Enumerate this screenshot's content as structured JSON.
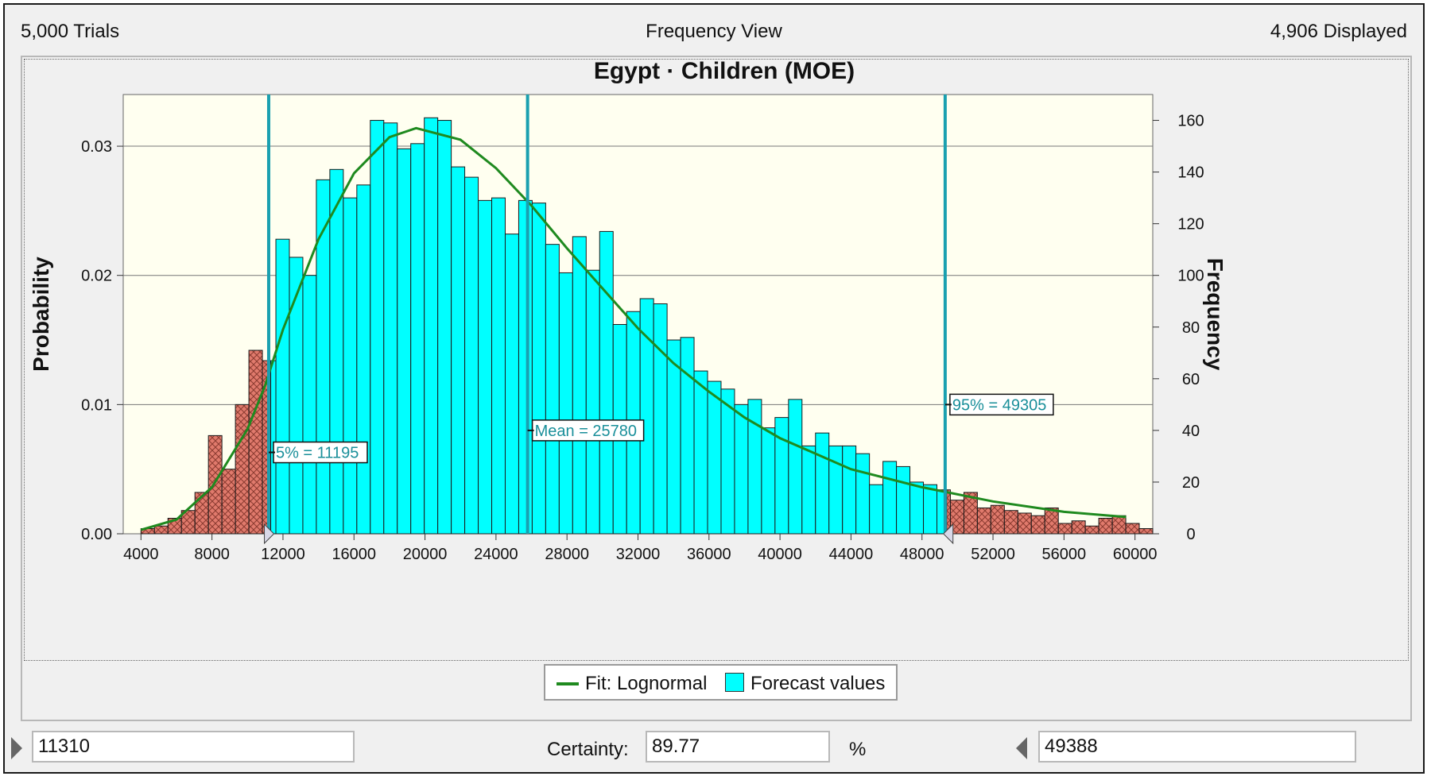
{
  "header": {
    "trials": "5,000 Trials",
    "view": "Frequency View",
    "displayed": "4,906 Displayed"
  },
  "chart_data": {
    "type": "bar",
    "title": "Egypt · Children (MOE)",
    "ylabel": "Probability",
    "y2label": "Frequency",
    "xlim": [
      3000,
      61000
    ],
    "ylim": [
      0,
      0.034
    ],
    "y2lim": [
      0,
      170
    ],
    "xticks": [
      4000,
      8000,
      12000,
      16000,
      20000,
      24000,
      28000,
      32000,
      36000,
      40000,
      44000,
      48000,
      52000,
      56000,
      60000
    ],
    "yticks": [
      0.0,
      0.01,
      0.02,
      0.03
    ],
    "ytick_labels": [
      "0.00",
      "0.01",
      "0.02",
      "0.03"
    ],
    "y2ticks": [
      0,
      20,
      40,
      60,
      80,
      100,
      120,
      140,
      160
    ],
    "bin_width": 760,
    "bin_start": 4000,
    "frequencies": [
      2,
      3,
      6,
      9,
      16,
      38,
      25,
      50,
      71,
      67,
      114,
      107,
      100,
      137,
      141,
      130,
      135,
      160,
      159,
      149,
      151,
      161,
      160,
      142,
      138,
      129,
      130,
      116,
      129,
      128,
      112,
      101,
      115,
      102,
      117,
      81,
      86,
      91,
      89,
      75,
      76,
      63,
      59,
      56,
      50,
      52,
      41,
      45,
      52,
      34,
      39,
      34,
      34,
      31,
      19,
      28,
      26,
      20,
      19,
      17,
      13,
      16,
      10,
      11,
      9,
      8,
      7,
      10,
      4,
      5,
      3,
      6,
      7,
      4,
      2
    ],
    "series": [
      {
        "name": "Forecast values",
        "color": "#00ffff",
        "tail_color": "#e07a6c"
      },
      {
        "name": "Fit: Lognormal",
        "color": "#1f8a1f"
      }
    ],
    "fit_curve": [
      [
        4000,
        0.0003
      ],
      [
        6000,
        0.0011
      ],
      [
        8000,
        0.0036
      ],
      [
        10000,
        0.0081
      ],
      [
        11000,
        0.0115
      ],
      [
        12000,
        0.0158
      ],
      [
        14000,
        0.0228
      ],
      [
        16000,
        0.0279
      ],
      [
        18000,
        0.0307
      ],
      [
        19500,
        0.0314
      ],
      [
        22000,
        0.0305
      ],
      [
        24000,
        0.0283
      ],
      [
        26000,
        0.0254
      ],
      [
        28000,
        0.0221
      ],
      [
        30000,
        0.019
      ],
      [
        32000,
        0.0159
      ],
      [
        34000,
        0.0132
      ],
      [
        36000,
        0.011
      ],
      [
        38000,
        0.009
      ],
      [
        40000,
        0.0074
      ],
      [
        44000,
        0.005
      ],
      [
        48000,
        0.0036
      ],
      [
        52000,
        0.0025
      ],
      [
        56000,
        0.0017
      ],
      [
        59500,
        0.0013
      ]
    ],
    "markers": [
      {
        "label": "5% = 11195",
        "value": 11195,
        "label_y": 0.0063
      },
      {
        "label": "Mean = 25780",
        "value": 25780,
        "label_y": 0.008
      },
      {
        "label": "95% = 49305",
        "value": 49305,
        "label_y": 0.01
      }
    ],
    "certainty_range": [
      11310,
      49388
    ],
    "grid": true,
    "legend_position": "bottom-center",
    "plot_background": "#fffff0"
  },
  "controls": {
    "left_value": "11310",
    "certainty_label": "Certainty:",
    "certainty_value": "89.77",
    "percent_label": "%",
    "right_value": "49388"
  }
}
